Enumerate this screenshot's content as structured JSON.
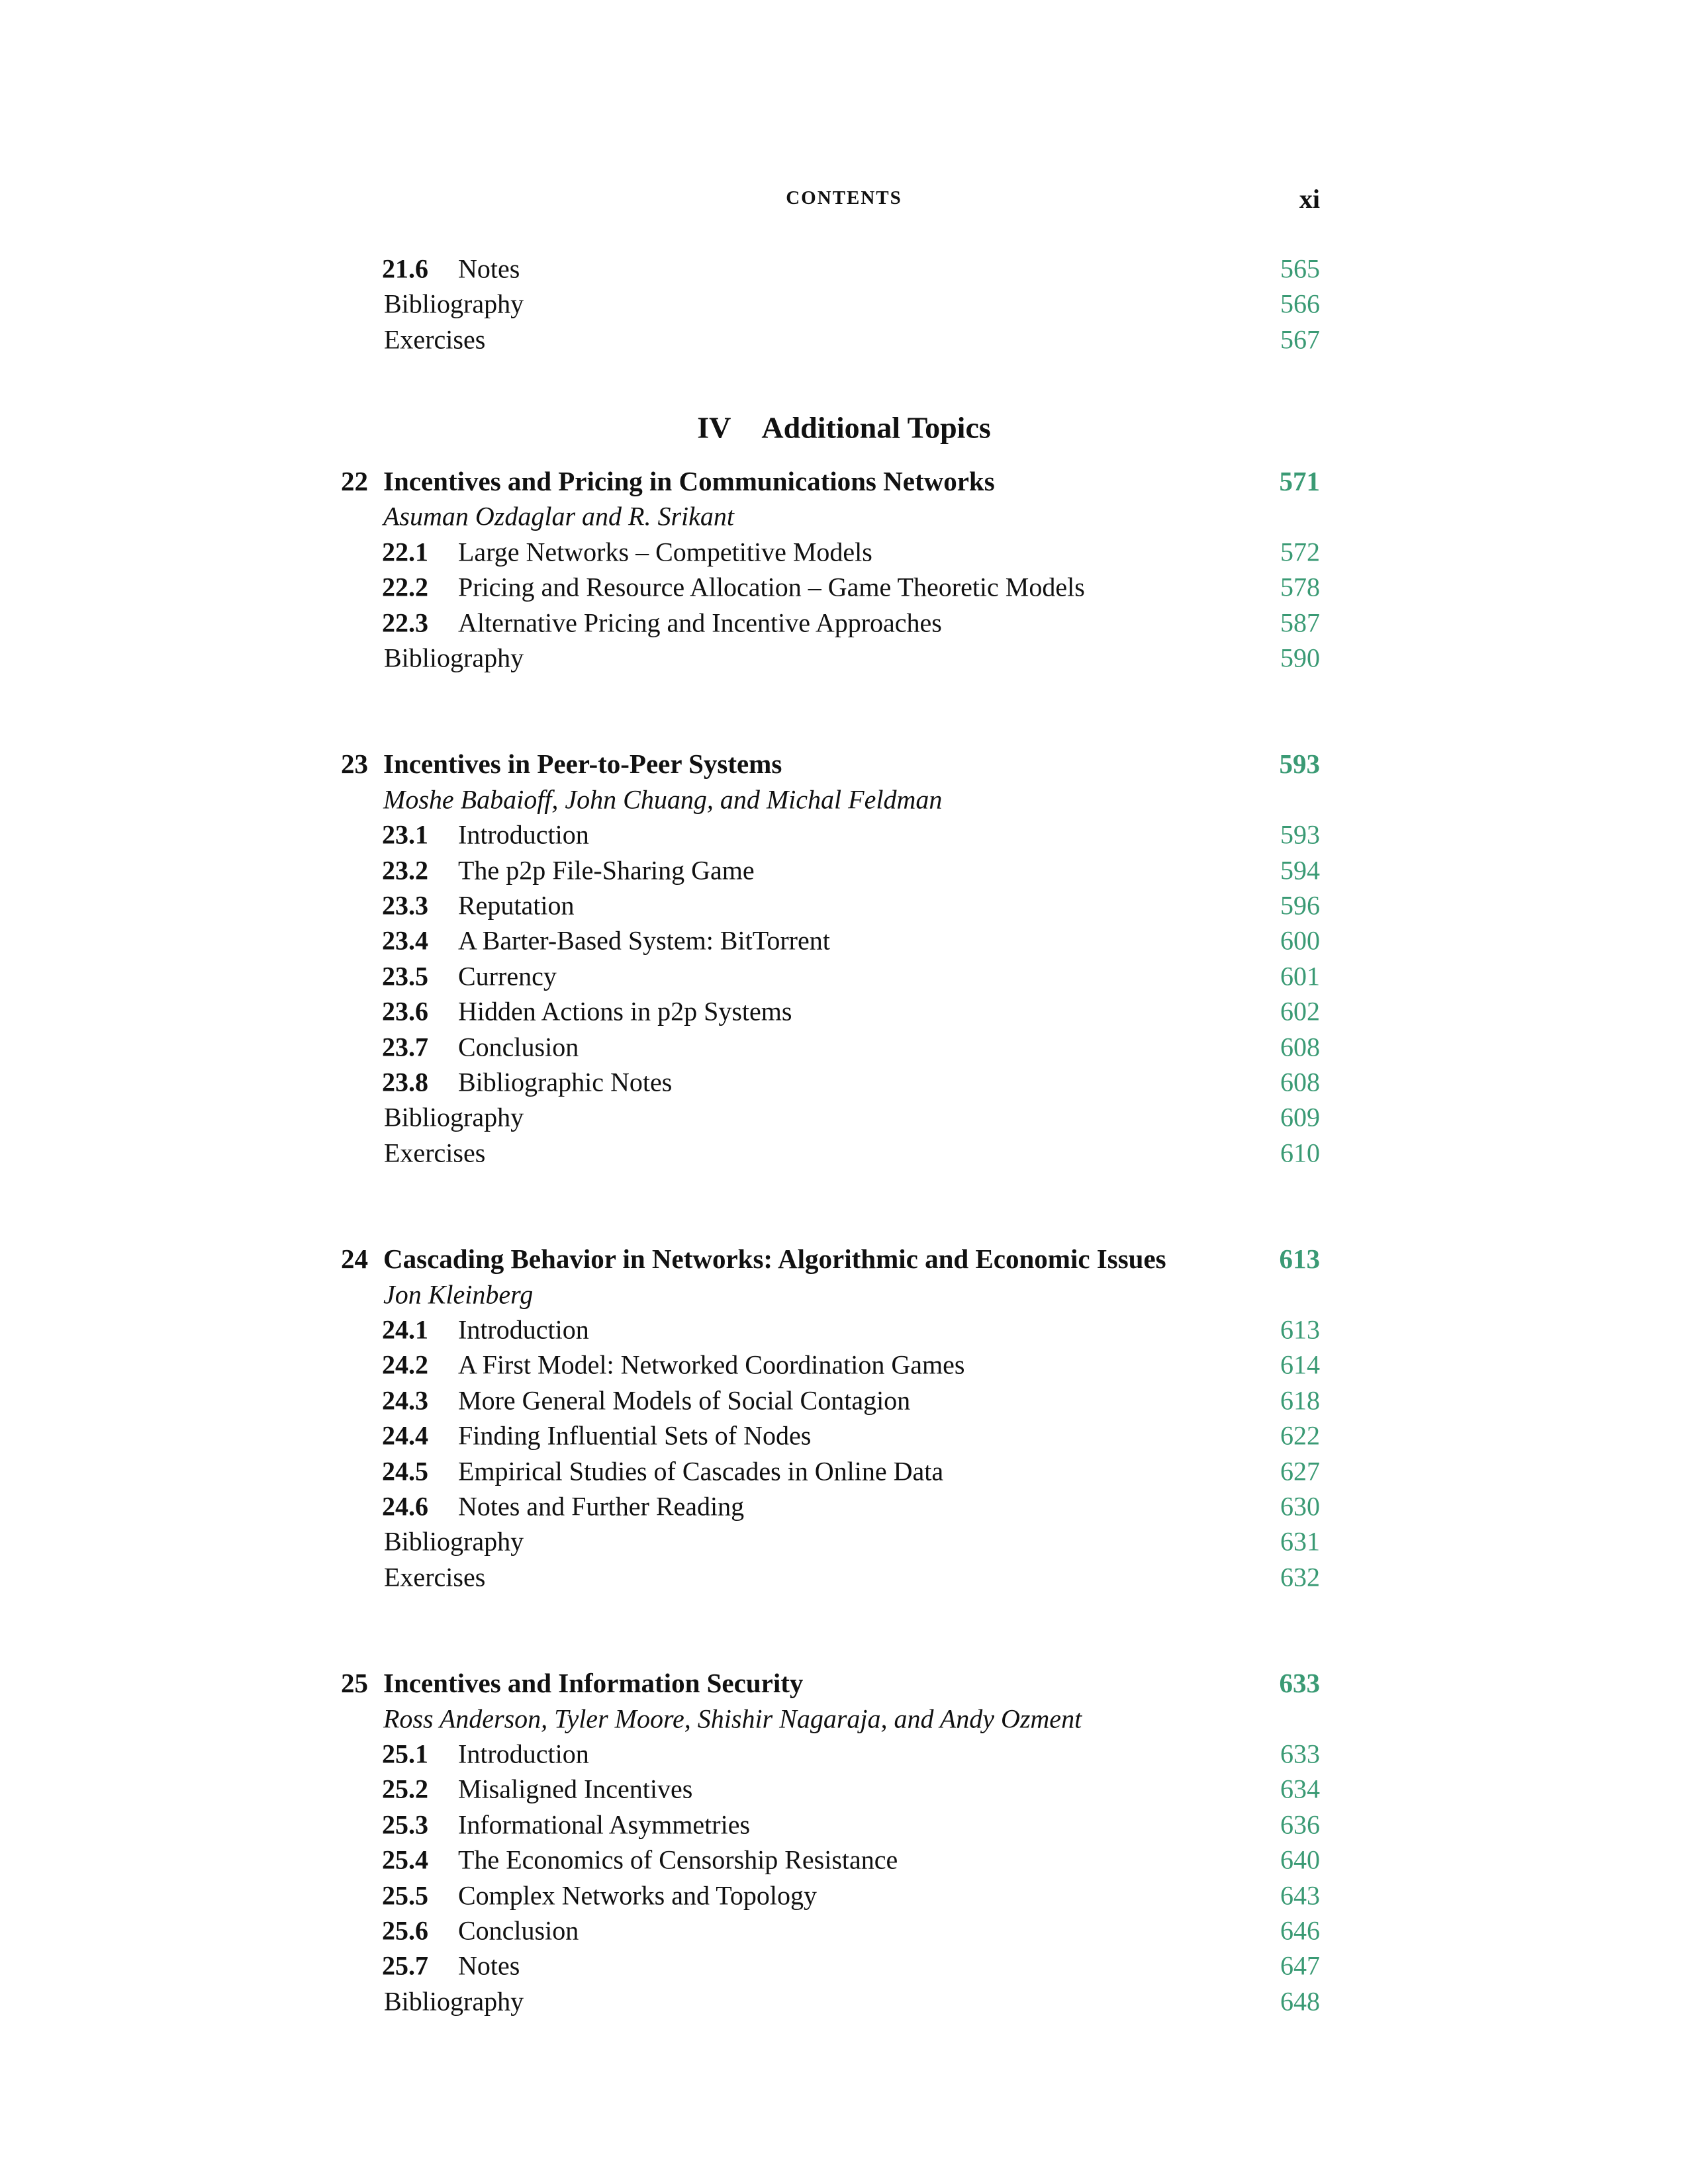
{
  "header": {
    "running_head": "CONTENTS",
    "page_number": "xi"
  },
  "colors": {
    "page_link": "#3a9a74",
    "text": "#111111"
  },
  "prior_entries": [
    {
      "number": "21.6",
      "title": "Notes",
      "page": "565"
    },
    {
      "title": "Bibliography",
      "page": "566"
    },
    {
      "title": "Exercises",
      "page": "567"
    }
  ],
  "part": {
    "numeral": "IV",
    "title": "Additional Topics"
  },
  "chapters": [
    {
      "number": "22",
      "title": "Incentives and Pricing in Communications Networks",
      "page": "571",
      "authors": "Asuman Ozdaglar and R. Srikant",
      "entries": [
        {
          "number": "22.1",
          "title": "Large Networks – Competitive Models",
          "page": "572"
        },
        {
          "number": "22.2",
          "title": "Pricing and Resource Allocation – Game Theoretic Models",
          "page": "578"
        },
        {
          "number": "22.3",
          "title": "Alternative Pricing and Incentive Approaches",
          "page": "587"
        },
        {
          "title": "Bibliography",
          "page": "590"
        }
      ]
    },
    {
      "number": "23",
      "title": "Incentives in Peer-to-Peer Systems",
      "page": "593",
      "authors": "Moshe Babaioff, John Chuang, and Michal Feldman",
      "entries": [
        {
          "number": "23.1",
          "title": "Introduction",
          "page": "593"
        },
        {
          "number": "23.2",
          "title": "The p2p File-Sharing Game",
          "page": "594"
        },
        {
          "number": "23.3",
          "title": "Reputation",
          "page": "596"
        },
        {
          "number": "23.4",
          "title": "A Barter-Based System: BitTorrent",
          "page": "600"
        },
        {
          "number": "23.5",
          "title": "Currency",
          "page": "601"
        },
        {
          "number": "23.6",
          "title": "Hidden Actions in p2p Systems",
          "page": "602"
        },
        {
          "number": "23.7",
          "title": "Conclusion",
          "page": "608"
        },
        {
          "number": "23.8",
          "title": "Bibliographic Notes",
          "page": "608"
        },
        {
          "title": "Bibliography",
          "page": "609"
        },
        {
          "title": "Exercises",
          "page": "610"
        }
      ]
    },
    {
      "number": "24",
      "title": "Cascading Behavior in Networks: Algorithmic and Economic Issues",
      "page": "613",
      "authors": "Jon Kleinberg",
      "entries": [
        {
          "number": "24.1",
          "title": "Introduction",
          "page": "613"
        },
        {
          "number": "24.2",
          "title": "A First Model: Networked Coordination Games",
          "page": "614"
        },
        {
          "number": "24.3",
          "title": "More General Models of Social Contagion",
          "page": "618"
        },
        {
          "number": "24.4",
          "title": "Finding Influential Sets of Nodes",
          "page": "622"
        },
        {
          "number": "24.5",
          "title": "Empirical Studies of Cascades in Online Data",
          "page": "627"
        },
        {
          "number": "24.6",
          "title": "Notes and Further Reading",
          "page": "630"
        },
        {
          "title": "Bibliography",
          "page": "631"
        },
        {
          "title": "Exercises",
          "page": "632"
        }
      ]
    },
    {
      "number": "25",
      "title": "Incentives and Information Security",
      "page": "633",
      "authors": "Ross Anderson, Tyler Moore, Shishir Nagaraja, and Andy Ozment",
      "entries": [
        {
          "number": "25.1",
          "title": "Introduction",
          "page": "633"
        },
        {
          "number": "25.2",
          "title": "Misaligned Incentives",
          "page": "634"
        },
        {
          "number": "25.3",
          "title": "Informational Asymmetries",
          "page": "636"
        },
        {
          "number": "25.4",
          "title": "The Economics of Censorship Resistance",
          "page": "640"
        },
        {
          "number": "25.5",
          "title": "Complex Networks and Topology",
          "page": "643"
        },
        {
          "number": "25.6",
          "title": "Conclusion",
          "page": "646"
        },
        {
          "number": "25.7",
          "title": "Notes",
          "page": "647"
        },
        {
          "title": "Bibliography",
          "page": "648"
        }
      ]
    }
  ]
}
